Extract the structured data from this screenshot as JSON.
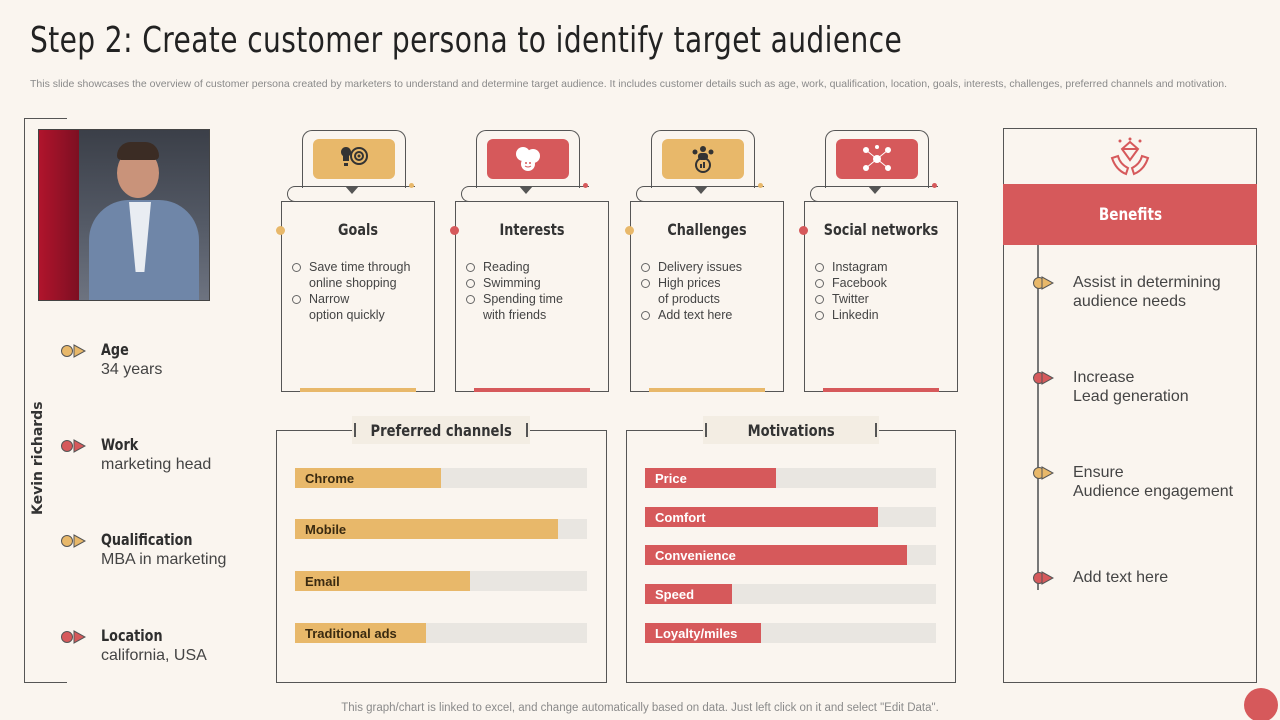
{
  "header": {
    "title": "Step 2: Create customer persona to identify target audience",
    "subtitle": "This slide showcases the overview of customer persona created by marketers to understand and determine target audience. It includes customer details such as age, work, qualification, location, goals, interests, challenges, preferred channels and motivation."
  },
  "persona": {
    "name": "Kevin richards",
    "attributes": [
      {
        "label": "Age",
        "value": "34 years",
        "color": "#e8b86a"
      },
      {
        "label": "Work",
        "value": "marketing head",
        "color": "#d6595b"
      },
      {
        "label": "Qualification",
        "value": "MBA in marketing",
        "color": "#e8b86a"
      },
      {
        "label": "Location",
        "value": "california, USA",
        "color": "#d6595b"
      }
    ]
  },
  "cards": [
    {
      "title": "Goals",
      "icon": "target-idea-icon",
      "color": "#e8b86a",
      "items": [
        "Save time through\nonline shopping",
        "Narrow\noption quickly"
      ]
    },
    {
      "title": "Interests",
      "icon": "emoji-faces-icon",
      "color": "#d6595b",
      "items": [
        "Reading",
        "Swimming",
        "Spending time\nwith friends"
      ]
    },
    {
      "title": "Challenges",
      "icon": "team-chart-icon",
      "color": "#e8b86a",
      "items": [
        "Delivery  issues",
        "High prices\nof products",
        "Add text here"
      ]
    },
    {
      "title": "Social networks",
      "icon": "network-nodes-icon",
      "color": "#d6595b",
      "items": [
        "Instagram",
        "Facebook",
        "Twitter",
        "Linkedin"
      ]
    }
  ],
  "preferred_channels": {
    "title": "Preferred channels",
    "color": "#e8b86a",
    "bars": [
      {
        "label": "Chrome",
        "value": 50
      },
      {
        "label": "Mobile",
        "value": 90
      },
      {
        "label": "Email",
        "value": 60
      },
      {
        "label": "Traditional ads",
        "value": 45
      }
    ]
  },
  "motivations": {
    "title": "Motivations",
    "color": "#d6595b",
    "bars": [
      {
        "label": "Price",
        "value": 45
      },
      {
        "label": "Comfort",
        "value": 80
      },
      {
        "label": "Convenience",
        "value": 90
      },
      {
        "label": "Speed",
        "value": 30
      },
      {
        "label": "Loyalty/miles",
        "value": 40
      }
    ]
  },
  "benefits": {
    "title": "Benefits",
    "icon": "hands-diamond-icon",
    "items": [
      {
        "text": "Assist in determining\naudience needs",
        "color": "#e8b86a"
      },
      {
        "text": "Increase\nLead generation",
        "color": "#d6595b"
      },
      {
        "text": "Ensure\nAudience engagement",
        "color": "#e8b86a"
      },
      {
        "text": "Add text here",
        "color": "#d6595b"
      }
    ]
  },
  "footer": {
    "note": "This graph/chart is linked to excel,  and change automatically based on data. Just left click on it and select \"Edit Data\"."
  }
}
